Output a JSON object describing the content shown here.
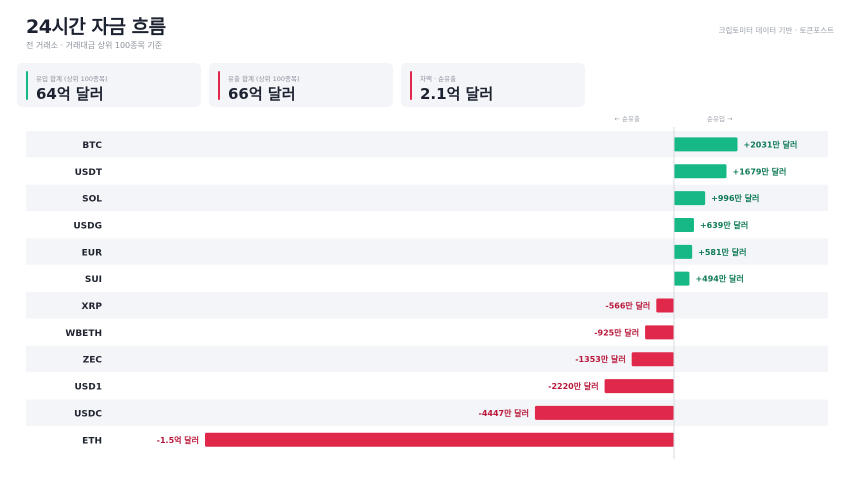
{
  "header": {
    "title": "24시간 자금 흐름",
    "subtitle": "전 거래소 · 거래대금 상위 100종목 기준",
    "source": "크립토미터 데이터 기반 · 토큰포스트"
  },
  "cards": [
    {
      "label": "유입 합계 (상위 100종목)",
      "value": "64억 달러",
      "color": "#16b886"
    },
    {
      "label": "유출 합계 (상위 100종목)",
      "value": "66억 달러",
      "color": "#e0294a"
    },
    {
      "label": "차액 · 순유출",
      "value": "2.1억 달러",
      "color": "#e0294a"
    }
  ],
  "direction": {
    "outflow": "← 순유출",
    "inflow": "순유입 →"
  },
  "colors": {
    "inflow": "#16b886",
    "outflow": "#e0294a",
    "inflow_text": "#0f7a57",
    "outflow_text": "#b8183a"
  },
  "chart_data": {
    "type": "bar",
    "orientation": "horizontal",
    "categories": [
      "BTC",
      "USDT",
      "SOL",
      "USDG",
      "EUR",
      "SUI",
      "XRP",
      "WBETH",
      "ZEC",
      "USD1",
      "USDC",
      "ETH"
    ],
    "values": [
      2031,
      1679,
      996,
      639,
      581,
      494,
      -566,
      -925,
      -1353,
      -2220,
      -4447,
      -15000
    ],
    "value_labels": [
      "+2031만 달러",
      "+1679만 달러",
      "+996만 달러",
      "+639만 달러",
      "+581만 달러",
      "+494만 달러",
      "-566만 달러",
      "-925만 달러",
      "-1353만 달러",
      "-2220만 달러",
      "-4447만 달러",
      "-1.5억 달러"
    ],
    "unit": "만 달러"
  }
}
